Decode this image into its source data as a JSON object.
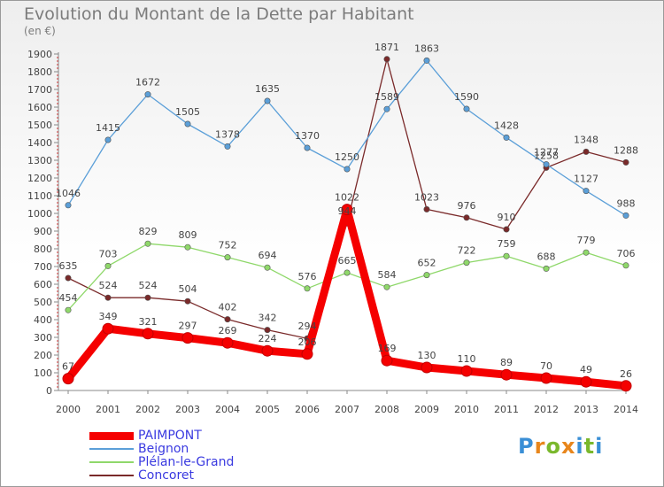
{
  "title": "Evolution du Montant de la Dette par Habitant",
  "subtitle": "(en €)",
  "logo": {
    "text": "Proxiti",
    "colors": [
      "#3a8fd6",
      "#e8861c",
      "#7ab82c",
      "#e8861c",
      "#3a8fd6",
      "#7ab82c",
      "#3a8fd6"
    ]
  },
  "chart_data": {
    "type": "line",
    "x": [
      "2000",
      "2001",
      "2002",
      "2003",
      "2004",
      "2005",
      "2006",
      "2007",
      "2008",
      "2009",
      "2010",
      "2011",
      "2012",
      "2013",
      "2014"
    ],
    "ylim": [
      0,
      1900
    ],
    "yticks": [
      0,
      100,
      200,
      300,
      400,
      500,
      600,
      700,
      800,
      900,
      1000,
      1100,
      1200,
      1300,
      1400,
      1500,
      1600,
      1700,
      1800,
      1900
    ],
    "series": [
      {
        "name": "Concoret",
        "color": "#7a2a2a",
        "values": [
          635,
          524,
          524,
          504,
          402,
          342,
          294,
          944,
          1871,
          1023,
          976,
          910,
          1258,
          1348,
          1288
        ],
        "labels": [
          "635",
          "524",
          "524",
          "504",
          "402",
          "342",
          "294",
          "944",
          "1871",
          "1023",
          "976",
          "910",
          "1258",
          "1348",
          "1288"
        ]
      },
      {
        "name": "Plélan-le-Grand",
        "color": "#8fd86a",
        "values": [
          454,
          703,
          829,
          809,
          752,
          694,
          576,
          665,
          584,
          652,
          722,
          759,
          688,
          779,
          706
        ],
        "labels": [
          "454",
          "703",
          "829",
          "809",
          "752",
          "694",
          "576",
          "665",
          "584",
          "652",
          "722",
          "759",
          "688",
          "779",
          "706"
        ]
      },
      {
        "name": "Beignon",
        "color": "#5b9fd8",
        "values": [
          1046,
          1415,
          1672,
          1505,
          1378,
          1635,
          1370,
          1250,
          1589,
          1863,
          1590,
          1428,
          1277,
          1127,
          988
        ],
        "labels": [
          "1046",
          "1415",
          "1672",
          "1505",
          "1378",
          "1635",
          "1370",
          "1250",
          "1589",
          "1863",
          "1590",
          "1428",
          "1277",
          "1127",
          "988"
        ]
      },
      {
        "name": "PAIMPONT",
        "color": "#f50000",
        "values": [
          67,
          349,
          321,
          297,
          269,
          224,
          206,
          1022,
          169,
          130,
          110,
          89,
          70,
          49,
          26
        ],
        "labels": [
          "67",
          "349",
          "321",
          "297",
          "269",
          "224",
          "206",
          "1022",
          "169",
          "130",
          "110",
          "89",
          "70",
          "49",
          "26"
        ]
      }
    ],
    "legend": [
      "PAIMPONT",
      "Beignon",
      "Plélan-le-Grand",
      "Concoret"
    ],
    "legend_position": "bottom-left",
    "grid": false
  }
}
